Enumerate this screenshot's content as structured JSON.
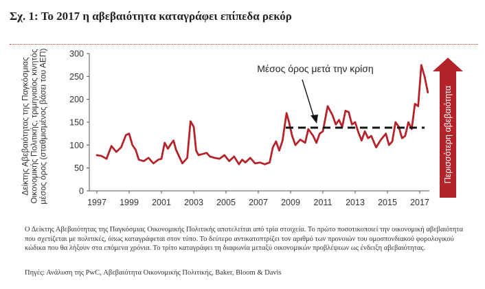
{
  "title": "Σχ. 1: Το 2017 η αβεβαιότητα καταγράφει επίπεδα ρεκόρ",
  "caption": "Ο Δείκτης Αβεβαιότητας της Παγκόσμιας Οικονομικής Πολιτικής αποτελείται από τρία στοιχεία. Το πρώτο ποσοτικοποιεί την οικονομική αβεβαιότητα που σχετίζεται με πολιτικές, όπως καταγράφεται στον τύπο. Το δεύτερο αντικατοπτρίζει τον αριθμό των προνοιών του ομοσπονδιακού φορολογικού κώδικα που θα λήξουν στα επόμενα χρόνια. Το τρίτο καταγράφει τη διαφωνία μεταξύ οικονομικών προβλέψεων ως ένδειξη αβεβαιότητας.",
  "source": "Πηγές: Ανάλυση της PwC, Αβεβαιότητα Οικονομικής Πολιτικής, Baker, Bloom & Davis",
  "chart_data": {
    "type": "line",
    "ylabel": "Δείκτης Αβεβαιότητας της Παγκόσμιας Οικονομικής Πολιτικής, τριμηνιαίος κινητός μέσος όρος (σταθμισμένος βάσει του ΑΕΠ)",
    "xlabel": "",
    "x_ticks": [
      "1997",
      "1999",
      "2001",
      "2003",
      "2005",
      "2007",
      "2009",
      "2011",
      "2013",
      "2015",
      "2017"
    ],
    "y_ticks": [
      0,
      50,
      100,
      150,
      200,
      250,
      300
    ],
    "xlim": [
      1997,
      2017.6
    ],
    "ylim": [
      0,
      300
    ],
    "grid": false,
    "series_color": "#b5232a",
    "series": [
      {
        "x": [
          1997.0,
          1997.3,
          1997.6,
          1997.9,
          1998.2,
          1998.5,
          1998.8,
          1999.0,
          1999.2,
          1999.4,
          1999.6,
          1999.9,
          2000.2,
          2000.5,
          2000.8,
          2001.0,
          2001.2,
          2001.4,
          2001.6,
          2001.75,
          2001.9,
          2002.1,
          2002.3,
          2002.6,
          2002.8,
          2003.0,
          2003.15,
          2003.3,
          2003.5,
          2003.8,
          2004.0,
          2004.3,
          2004.6,
          2004.9,
          2005.2,
          2005.5,
          2005.8,
          2006.0,
          2006.2,
          2006.5,
          2006.8,
          2007.1,
          2007.4,
          2007.7,
          2007.9,
          2008.1,
          2008.3,
          2008.5,
          2008.75,
          2008.9,
          2009.1,
          2009.3,
          2009.6,
          2009.9,
          2010.1,
          2010.4,
          2010.6,
          2010.8,
          2011.0,
          2011.3,
          2011.6,
          2011.8,
          2012.0,
          2012.2,
          2012.4,
          2012.6,
          2012.8,
          2013.0,
          2013.2,
          2013.4,
          2013.6,
          2013.8,
          2014.0,
          2014.3,
          2014.6,
          2014.9,
          2015.1,
          2015.3,
          2015.5,
          2015.7,
          2015.9,
          2016.1,
          2016.3,
          2016.5,
          2016.7,
          2016.9,
          2017.1,
          2017.3,
          2017.5
        ],
        "values": [
          78,
          76,
          70,
          98,
          85,
          95,
          122,
          125,
          100,
          90,
          68,
          65,
          72,
          60,
          68,
          70,
          105,
          92,
          103,
          110,
          90,
          75,
          60,
          72,
          152,
          140,
          88,
          78,
          80,
          83,
          75,
          72,
          70,
          78,
          65,
          75,
          58,
          68,
          62,
          72,
          60,
          62,
          58,
          62,
          95,
          108,
          88,
          110,
          170,
          150,
          120,
          100,
          112,
          105,
          135,
          120,
          105,
          125,
          130,
          185,
          165,
          145,
          155,
          140,
          175,
          172,
          145,
          150,
          128,
          110,
          130,
          115,
          120,
          95,
          112,
          125,
          100,
          108,
          150,
          140,
          115,
          120,
          150,
          135,
          190,
          185,
          275,
          250,
          215
        ]
      }
    ],
    "reference_line": {
      "label": "Μέσος όρος μετά την κρίση",
      "value": 138,
      "from": 2008.7,
      "to": 2017.3,
      "style": "dashed"
    },
    "side_arrow": {
      "label": "Περισσότερη αβεβαιότητα",
      "color": "#b5232a",
      "direction": "up"
    }
  }
}
